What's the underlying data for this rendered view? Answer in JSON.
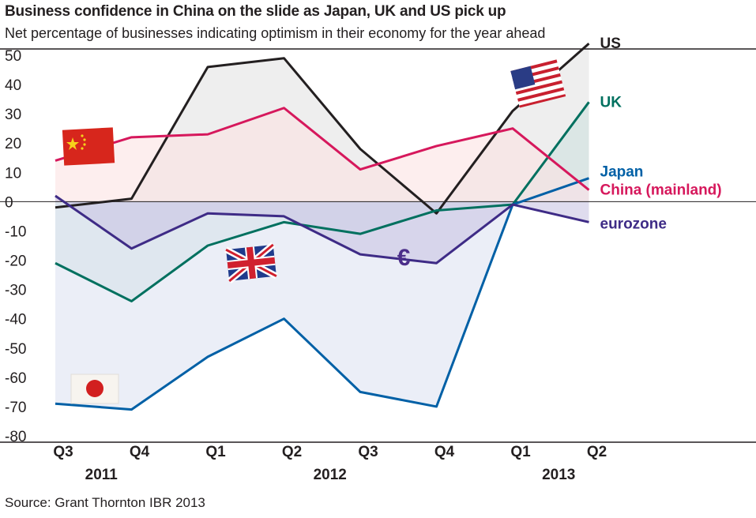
{
  "title": "Business confidence in China on the slide as Japan, UK and US pick up",
  "subtitle": "Net percentage of businesses indicating optimism in their economy for the year ahead",
  "source": "Source: Grant Thornton IBR 2013",
  "chart_data": {
    "type": "line",
    "categories": [
      "Q3",
      "Q4",
      "Q1",
      "Q2",
      "Q3",
      "Q4",
      "Q1",
      "Q2"
    ],
    "year_labels": [
      {
        "label": "2011",
        "category_index": 0.5
      },
      {
        "label": "2012",
        "category_index": 3.5
      },
      {
        "label": "2013",
        "category_index": 6.5
      }
    ],
    "ylim": [
      -80,
      50
    ],
    "yticks": [
      50,
      40,
      30,
      20,
      10,
      0,
      -10,
      -20,
      -30,
      -40,
      -50,
      -60,
      -70,
      -80
    ],
    "xlabel": "",
    "ylabel": "",
    "euro_symbol": "€",
    "series": [
      {
        "name": "US",
        "color": "#231f20",
        "fill": "#e2e2e2",
        "values": [
          -2,
          1,
          46,
          49,
          18,
          -4,
          31,
          54
        ]
      },
      {
        "name": "UK",
        "color": "#00705f",
        "fill": "#cfe1df",
        "values": [
          -21,
          -34,
          -15,
          -7,
          -11,
          -3,
          -1,
          34
        ]
      },
      {
        "name": "Japan",
        "color": "#0060a6",
        "fill": "#dde2f1",
        "values": [
          -69,
          -71,
          -53,
          -40,
          -65,
          -70,
          -1,
          8
        ]
      },
      {
        "name": "China (mainland)",
        "color": "#d6185c",
        "fill": "#fbe2e3",
        "values": [
          14,
          22,
          23,
          32,
          11,
          19,
          25,
          4
        ]
      },
      {
        "name": "eurozone",
        "color": "#3e2b86",
        "fill": "#c9c5e2",
        "values": [
          2,
          -16,
          -4,
          -5,
          -18,
          -21,
          -1,
          -7
        ]
      }
    ]
  }
}
